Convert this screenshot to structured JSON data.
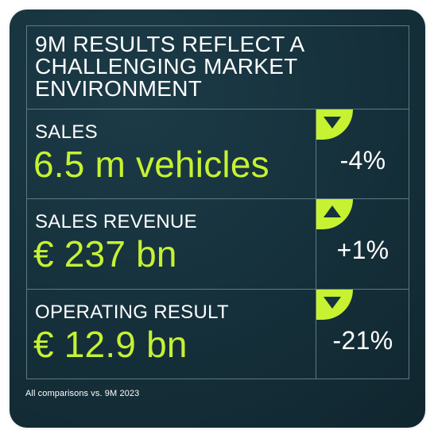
{
  "title": {
    "line1": "9M RESULTS REFLECT A",
    "line2": "CHALLENGING MARKET",
    "line3": "ENVIRONMENT"
  },
  "metrics": [
    {
      "label": "SALES",
      "value": "6.5 m vehicles",
      "change": "-4%",
      "direction": "down"
    },
    {
      "label": "SALES REVENUE",
      "value": "€ 237 bn",
      "change": "+1%",
      "direction": "up"
    },
    {
      "label": "OPERATING RESULT",
      "value": "€ 12.9 bn",
      "change": "-21%",
      "direction": "down"
    }
  ],
  "footnote": "All comparisons vs. 9M 2023",
  "colors": {
    "accent": "#c6f232",
    "background": "#16323d",
    "text": "#ffffff",
    "divider": "#5f7a82"
  }
}
